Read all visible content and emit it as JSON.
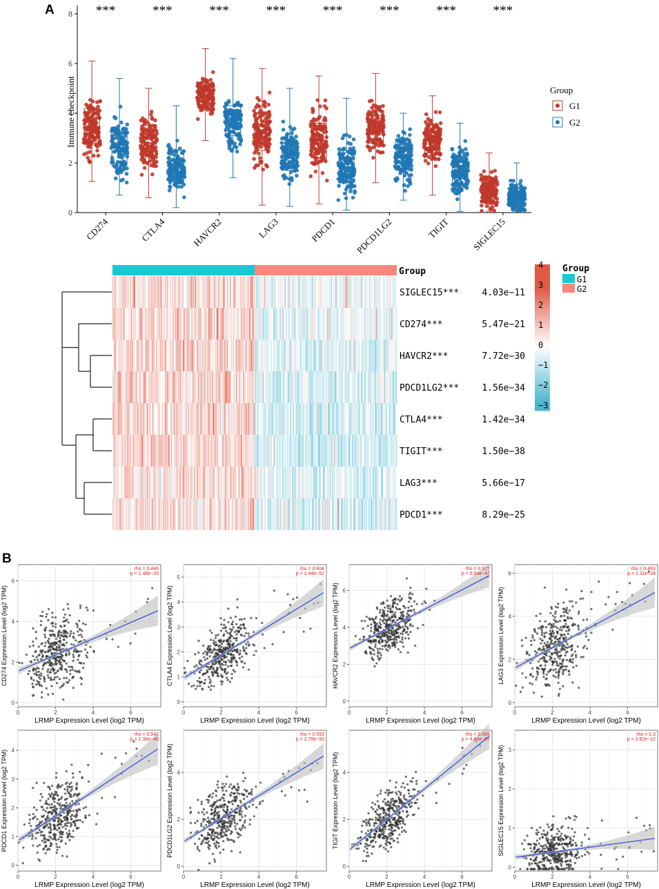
{
  "figure": {
    "panel_a_label": "A",
    "panel_b_label": "B"
  },
  "colors": {
    "g1_box": "#C0392B",
    "g2_box": "#1F77B4",
    "heat_high": "#E05A46",
    "heat_mid": "#FFFFFF",
    "heat_low": "#4BB7CF",
    "g1_anno": "#1CC6D4",
    "g2_anno": "#F8877D",
    "fit_line": "#3B5BDB",
    "ci_band": "#BEBEBE",
    "stat_text": "#E02020"
  },
  "chart_data": [
    {
      "id": "boxplot",
      "type": "box",
      "ylabel": "Immune checkpoint",
      "ylim": [
        0,
        8
      ],
      "yticks": [
        0,
        2,
        4,
        6,
        8
      ],
      "categories": [
        "CD274",
        "CTLA4",
        "HAVCR2",
        "LAG3",
        "PDCD1",
        "PDCD1LG2",
        "TIGIT",
        "SIGLEC15"
      ],
      "significance": [
        "***",
        "***",
        "***",
        "***",
        "***",
        "***",
        "***",
        "***"
      ],
      "legend_title": "Group",
      "series": [
        {
          "name": "G1",
          "boxes": [
            {
              "min": 1.25,
              "q1": 2.8,
              "median": 3.3,
              "q3": 4.2,
              "max": 6.1
            },
            {
              "min": 0.6,
              "q1": 2.3,
              "median": 2.8,
              "q3": 3.5,
              "max": 5.0
            },
            {
              "min": 2.9,
              "q1": 4.3,
              "median": 4.7,
              "q3": 5.2,
              "max": 6.6
            },
            {
              "min": 0.3,
              "q1": 2.5,
              "median": 3.2,
              "q3": 4.0,
              "max": 5.8
            },
            {
              "min": 0.35,
              "q1": 2.2,
              "median": 2.9,
              "q3": 3.6,
              "max": 5.5
            },
            {
              "min": 1.2,
              "q1": 2.8,
              "median": 3.4,
              "q3": 3.9,
              "max": 5.6
            },
            {
              "min": 0.7,
              "q1": 2.4,
              "median": 2.9,
              "q3": 3.4,
              "max": 4.7
            },
            {
              "min": 0.05,
              "q1": 0.6,
              "median": 0.9,
              "q3": 1.4,
              "max": 2.4
            }
          ]
        },
        {
          "name": "G2",
          "boxes": [
            {
              "min": 0.7,
              "q1": 1.9,
              "median": 2.6,
              "q3": 3.3,
              "max": 5.4
            },
            {
              "min": 0.2,
              "q1": 1.4,
              "median": 1.8,
              "q3": 2.5,
              "max": 4.3
            },
            {
              "min": 1.4,
              "q1": 3.1,
              "median": 3.6,
              "q3": 4.3,
              "max": 6.2
            },
            {
              "min": 0.25,
              "q1": 1.7,
              "median": 2.3,
              "q3": 2.8,
              "max": 5.0
            },
            {
              "min": 0.1,
              "q1": 1.2,
              "median": 1.8,
              "q3": 2.5,
              "max": 4.6
            },
            {
              "min": 0.5,
              "q1": 1.8,
              "median": 2.2,
              "q3": 2.9,
              "max": 4.0
            },
            {
              "min": 0.05,
              "q1": 1.1,
              "median": 1.6,
              "q3": 2.2,
              "max": 3.6
            },
            {
              "min": 0.05,
              "q1": 0.3,
              "median": 0.6,
              "q3": 1.0,
              "max": 2.0
            }
          ]
        }
      ]
    },
    {
      "id": "heatmap",
      "type": "heatmap",
      "annotation_title": "Group",
      "legend_title": "Group",
      "legend_entries": [
        "G1",
        "G2"
      ],
      "colorbar_ticks": [
        "4",
        "3",
        "2",
        "1",
        "0",
        "−1",
        "−2",
        "−3"
      ],
      "colorbar_range": [
        -3.3,
        4
      ],
      "g1_fraction": 0.5,
      "rows": [
        {
          "label": "SIGLEC15***",
          "p": "4.03e−11",
          "g1_mean": 0.55,
          "g2_mean": -0.15
        },
        {
          "label": "CD274***",
          "p": "5.47e−21",
          "g1_mean": 0.55,
          "g2_mean": -0.35
        },
        {
          "label": "HAVCR2***",
          "p": "7.72e−30",
          "g1_mean": 0.6,
          "g2_mean": -0.55
        },
        {
          "label": "PDCD1LG2***",
          "p": "1.56e−34",
          "g1_mean": 0.6,
          "g2_mean": -0.6
        },
        {
          "label": "CTLA4***",
          "p": "1.42e−34",
          "g1_mean": 0.6,
          "g2_mean": -0.65
        },
        {
          "label": "TIGIT***",
          "p": "1.50e−38",
          "g1_mean": 0.65,
          "g2_mean": -0.7
        },
        {
          "label": "LAG3***",
          "p": "5.66e−17",
          "g1_mean": 0.45,
          "g2_mean": -0.5
        },
        {
          "label": "PDCD1***",
          "p": "8.29e−25",
          "g1_mean": 0.5,
          "g2_mean": -0.55
        }
      ]
    },
    {
      "id": "scatter_panels",
      "type": "scatter",
      "xlabel": "LRMP Expression Level (log2 TPM)",
      "xlim": [
        0,
        7.6
      ],
      "xticks": [
        0,
        2,
        4,
        6
      ],
      "panels": [
        {
          "ylabel": "CD274 Expression Level (log2 TPM)",
          "ylim": [
            -0.2,
            6.8
          ],
          "yticks": [
            0,
            2,
            4,
            6
          ],
          "rho": "rho = 0.446",
          "p": "p = 1.48e−26",
          "intercept": 1.55,
          "slope": 0.4,
          "noise": 0.95,
          "ci": 0.3
        },
        {
          "ylabel": "CTLA4 Expression Level (log2 TPM)",
          "ylim": [
            -0.2,
            5.5
          ],
          "yticks": [
            0,
            1,
            2,
            3,
            4,
            5
          ],
          "rho": "rho = 0.604",
          "p": "p = 1.44e−52",
          "intercept": 0.95,
          "slope": 0.46,
          "noise": 0.6,
          "ci": 0.22
        },
        {
          "ylabel": "HAVCR2 Expression Level (log2 TPM)",
          "ylim": [
            -0.3,
            7.4
          ],
          "yticks": [
            0,
            2,
            4,
            6
          ],
          "rho": "rho = 0.577",
          "p": "p = 5.54e−47",
          "intercept": 2.85,
          "slope": 0.53,
          "noise": 0.75,
          "ci": 0.25
        },
        {
          "ylabel": "LAG3 Expression Level (log2 TPM)",
          "ylim": [
            -0.2,
            6.4
          ],
          "yticks": [
            0,
            2,
            4,
            6
          ],
          "rho": "rho = 0.463",
          "p": "p = 1.11e−28",
          "intercept": 1.6,
          "slope": 0.47,
          "noise": 0.95,
          "ci": 0.28
        },
        {
          "ylabel": "PDCD1 Expression Level (log2 TPM)",
          "ylim": [
            -0.2,
            4.7
          ],
          "yticks": [
            0,
            1,
            2,
            3,
            4
          ],
          "rho": "rho = 0.542",
          "p": "p = 1.36e−40",
          "intercept": 0.85,
          "slope": 0.43,
          "noise": 0.6,
          "ci": 0.22
        },
        {
          "ylabel": "PDCD1LG2 Expression Level (log2 TPM)",
          "ylim": [
            -0.2,
            5.8
          ],
          "yticks": [
            0,
            2,
            4
          ],
          "rho": "rho = 0.593",
          "p": "p = 2.78e−50",
          "intercept": 1.05,
          "slope": 0.49,
          "noise": 0.7,
          "ci": 0.22
        },
        {
          "ylabel": "TIGIT Expression Level (log2 TPM)",
          "ylim": [
            -0.2,
            5.8
          ],
          "yticks": [
            0,
            2,
            4
          ],
          "rho": "rho = 0.665",
          "p": "p = 4.84e−67",
          "intercept": 0.7,
          "slope": 0.65,
          "noise": 0.6,
          "ci": 0.22
        },
        {
          "ylabel": "SIGLEC15 Expression Level (log2 TPM)",
          "ylim": [
            -0.1,
            3.5
          ],
          "yticks": [
            0,
            1,
            2,
            3
          ],
          "rho": "rho = 0.3",
          "p": "p = 3.82e−12",
          "intercept": 0.25,
          "slope": 0.065,
          "noise": 0.35,
          "ci": 0.12
        }
      ]
    }
  ]
}
